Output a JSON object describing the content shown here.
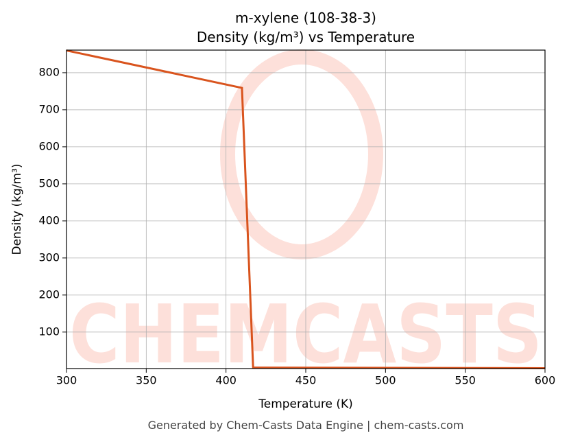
{
  "chart_data": {
    "type": "line",
    "title": "m-xylene (108-38-3)",
    "subtitle": "Density (kg/m³) vs Temperature",
    "x_label": "Temperature (K)",
    "y_label": "Density (kg/m³)",
    "footer": "Generated by Chem-Casts Data Engine | chem-casts.com",
    "watermark": "CHEMCASTS",
    "x": [
      300,
      410,
      417,
      600
    ],
    "series": [
      {
        "name": "Density",
        "color": "#d9541e",
        "values": [
          860,
          759,
          4,
          2.5
        ]
      }
    ],
    "xlim": [
      300,
      600
    ],
    "xticks": [
      300,
      350,
      400,
      450,
      500,
      550,
      600
    ],
    "ylim": [
      1.5,
      861
    ],
    "yticks": [
      100,
      200,
      300,
      400,
      500,
      600,
      700,
      800
    ],
    "grid": true
  }
}
